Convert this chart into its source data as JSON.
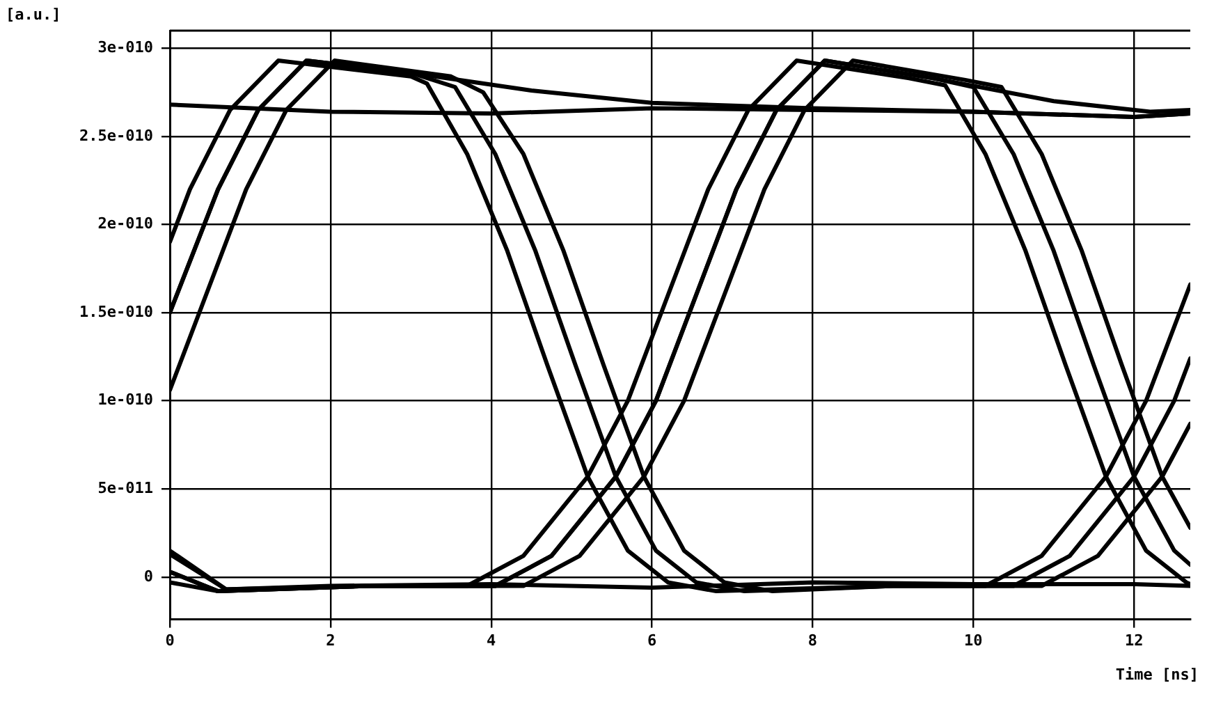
{
  "chart_data": {
    "type": "line",
    "xlabel": "Time [ns]",
    "ylabel": "[a.u.]",
    "xlim": [
      0,
      12.7
    ],
    "ylim": [
      -2.4e-11,
      3.1e-10
    ],
    "xticks": [
      0,
      2,
      4,
      6,
      8,
      10,
      12
    ],
    "yticks": [
      {
        "value": 0,
        "label": "0"
      },
      {
        "value": 5e-11,
        "label": "5e-011"
      },
      {
        "value": 1e-10,
        "label": "1e-010"
      },
      {
        "value": 1.5e-10,
        "label": "1.5e-010"
      },
      {
        "value": 2e-10,
        "label": "2e-010"
      },
      {
        "value": 2.5e-10,
        "label": "2.5e-010"
      },
      {
        "value": 3e-10,
        "label": "3e-010"
      }
    ],
    "grid": true,
    "legend": false,
    "marker": "none",
    "line_style": "solid",
    "series": [
      {
        "color": "#000000",
        "x": [
          0,
          0.6,
          1.1,
          1.7,
          3.0,
          3.55,
          4.05,
          4.55,
          5.05,
          5.55,
          6.05,
          6.55,
          7.15,
          9.0,
          10.5,
          11.2,
          12.0,
          12.5,
          12.7
        ],
        "values": [
          1.5e-10,
          2.2e-10,
          2.65e-10,
          2.93e-10,
          2.86e-10,
          2.78e-10,
          2.4e-10,
          1.85e-10,
          1.2e-10,
          5.7e-11,
          1.5e-11,
          -3e-12,
          -8e-12,
          -5e-12,
          -5e-12,
          1.2e-11,
          5.7e-11,
          1e-10,
          1.24e-10
        ]
      },
      {
        "color": "#000000",
        "x": [
          0,
          0.25,
          0.75,
          1.35,
          3.0,
          3.2,
          3.7,
          4.2,
          4.7,
          5.2,
          5.7,
          6.2,
          6.8,
          9.0,
          10.15,
          10.85,
          11.65,
          12.15,
          12.65,
          12.7
        ],
        "values": [
          1.9e-10,
          2.2e-10,
          2.65e-10,
          2.93e-10,
          2.84e-10,
          2.8e-10,
          2.4e-10,
          1.85e-10,
          1.2e-10,
          5.7e-11,
          1.5e-11,
          -3e-12,
          -8e-12,
          -5e-12,
          -5e-12,
          1.2e-11,
          5.7e-11,
          1e-10,
          1.6e-10,
          1.66e-10
        ]
      },
      {
        "color": "#000000",
        "x": [
          0,
          0.45,
          0.95,
          1.45,
          2.05,
          3.5,
          3.9,
          4.4,
          4.9,
          5.4,
          5.9,
          6.4,
          6.9,
          7.5,
          9.0,
          10.85,
          11.55,
          12.35,
          12.7
        ],
        "values": [
          1.06e-10,
          1.6e-10,
          2.2e-10,
          2.65e-10,
          2.93e-10,
          2.84e-10,
          2.75e-10,
          2.4e-10,
          1.85e-10,
          1.2e-10,
          5.7e-11,
          1.5e-11,
          -3e-12,
          -8e-12,
          -5e-12,
          -5e-12,
          1.2e-11,
          5.7e-11,
          8.7e-11
        ]
      },
      {
        "color": "#000000",
        "x": [
          0,
          0.6,
          2.5,
          4.05,
          4.75,
          5.55,
          6.05,
          6.55,
          7.05,
          7.55,
          8.15,
          9.5,
          10.0,
          10.5,
          11.0,
          11.5,
          12.0,
          12.5,
          12.7
        ],
        "values": [
          3e-12,
          -8e-12,
          -5e-12,
          -5e-12,
          1.2e-11,
          5.7e-11,
          1e-10,
          1.6e-10,
          2.2e-10,
          2.65e-10,
          2.93e-10,
          2.83e-10,
          2.78e-10,
          2.4e-10,
          1.85e-10,
          1.2e-10,
          5.7e-11,
          1.5e-11,
          7e-12
        ]
      },
      {
        "color": "#000000",
        "x": [
          0,
          0.6,
          2.5,
          3.7,
          4.4,
          5.2,
          5.7,
          6.2,
          6.7,
          7.2,
          7.8,
          9.2,
          9.65,
          10.15,
          10.65,
          11.15,
          11.65,
          12.15,
          12.65,
          12.7
        ],
        "values": [
          -3e-12,
          -8e-12,
          -5e-12,
          -5e-12,
          1.2e-11,
          5.7e-11,
          1e-10,
          1.6e-10,
          2.2e-10,
          2.65e-10,
          2.93e-10,
          2.83e-10,
          2.79e-10,
          2.4e-10,
          1.85e-10,
          1.2e-10,
          5.7e-11,
          1.5e-11,
          -3e-12,
          -4e-12
        ]
      },
      {
        "color": "#000000",
        "x": [
          0,
          0.7,
          2.5,
          4.4,
          5.1,
          5.9,
          6.4,
          6.9,
          7.4,
          7.9,
          8.5,
          9.9,
          10.35,
          10.85,
          11.35,
          11.85,
          12.35,
          12.7
        ],
        "values": [
          1.3e-11,
          -7e-12,
          -5e-12,
          -5e-12,
          1.2e-11,
          5.7e-11,
          1e-10,
          1.6e-10,
          2.2e-10,
          2.65e-10,
          2.93e-10,
          2.82e-10,
          2.78e-10,
          2.4e-10,
          1.85e-10,
          1.2e-10,
          5.7e-11,
          2.8e-11
        ]
      },
      {
        "color": "#000000",
        "x": [
          0,
          2,
          4,
          6,
          8,
          10,
          12,
          12.7
        ],
        "values": [
          2.68e-10,
          2.64e-10,
          2.63e-10,
          2.66e-10,
          2.65e-10,
          2.64e-10,
          2.61e-10,
          2.63e-10
        ]
      },
      {
        "color": "#000000",
        "x": [
          0,
          0.6,
          1.1,
          1.7,
          3.0,
          4.5,
          6.0,
          8.0,
          10.0,
          12.0,
          12.7
        ],
        "values": [
          1.5e-10,
          2.2e-10,
          2.65e-10,
          2.93e-10,
          2.86e-10,
          2.76e-10,
          2.69e-10,
          2.66e-10,
          2.64e-10,
          2.61e-10,
          2.63e-10
        ]
      },
      {
        "color": "#000000",
        "x": [
          0,
          0.6,
          2.5,
          4.05,
          4.75,
          5.55,
          6.05,
          6.55,
          7.05,
          7.55,
          8.15,
          9.5,
          11.0,
          12.2,
          12.7
        ],
        "values": [
          3e-12,
          -8e-12,
          -5e-12,
          -5e-12,
          1.2e-11,
          5.7e-11,
          1e-10,
          1.6e-10,
          2.2e-10,
          2.65e-10,
          2.93e-10,
          2.83e-10,
          2.7e-10,
          2.64e-10,
          2.65e-10
        ]
      },
      {
        "color": "#000000",
        "x": [
          0,
          0.7,
          2,
          4,
          6,
          8,
          10,
          12,
          12.7
        ],
        "values": [
          1.5e-11,
          -7e-12,
          -5e-12,
          -4e-12,
          -6e-12,
          -3e-12,
          -4e-12,
          -4e-12,
          -5e-12
        ]
      }
    ]
  }
}
